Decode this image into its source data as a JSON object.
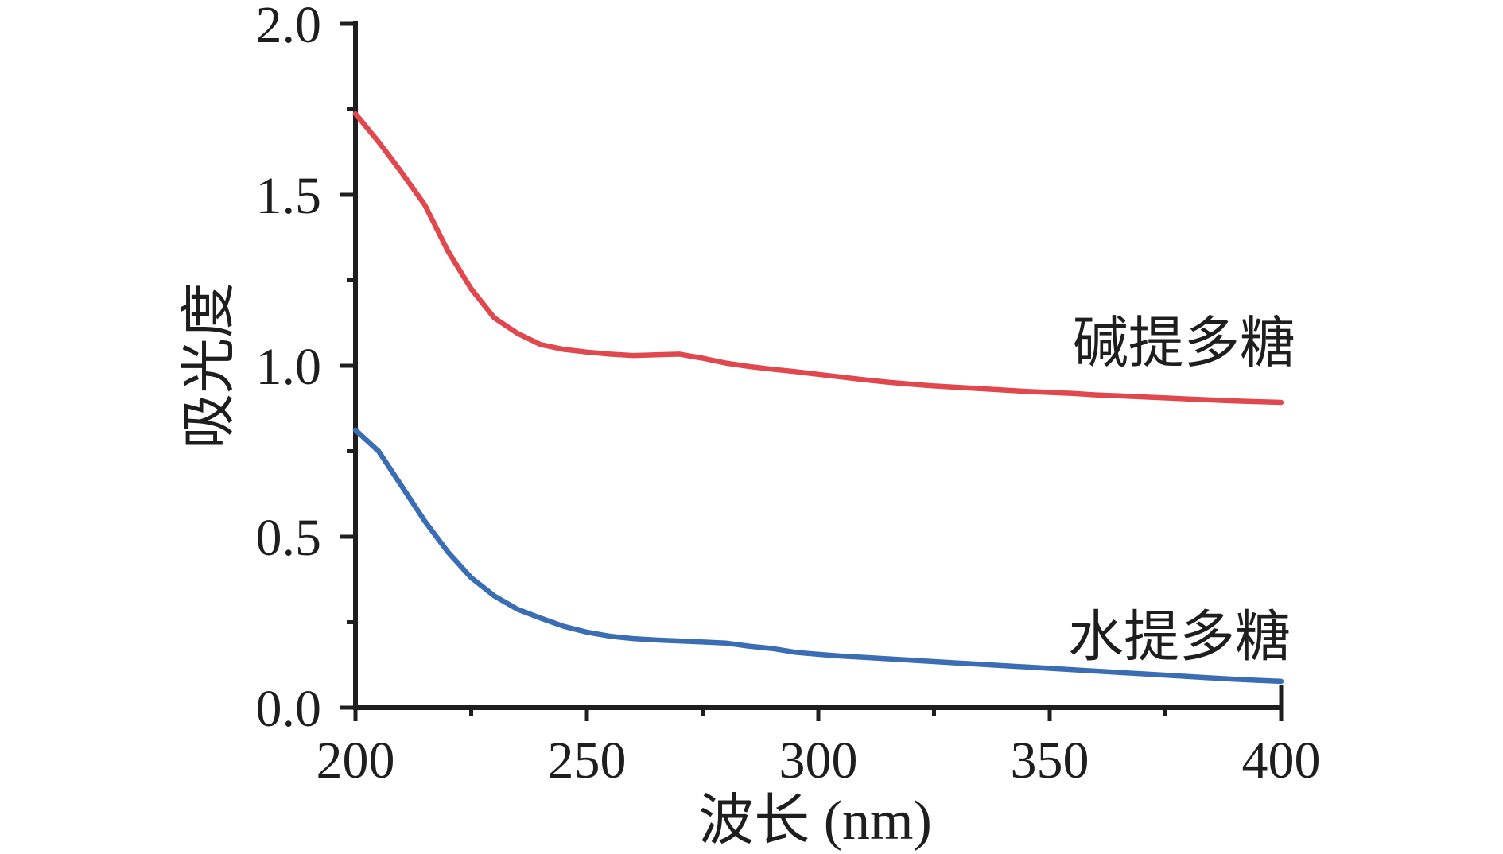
{
  "chart_data": {
    "type": "line",
    "title": "",
    "xlabel": "波长 (nm)",
    "ylabel": "吸光度",
    "xlim": [
      200,
      400
    ],
    "ylim": [
      0.0,
      2.0
    ],
    "grid": false,
    "legend_position": "inline-labels-right",
    "background": "#ffffff",
    "axis_color": "#1e1e1e",
    "text_color": "#1e1e1e",
    "x_major_ticks": [
      200,
      250,
      300,
      350,
      400
    ],
    "x_major_tick_labels": [
      "200",
      "250",
      "300",
      "350",
      "400"
    ],
    "x_minor_ticks": [
      225,
      275,
      325,
      375
    ],
    "y_major_ticks": [
      0.0,
      0.5,
      1.0,
      1.5,
      2.0
    ],
    "y_major_tick_labels": [
      "0.0",
      "0.5",
      "1.0",
      "1.5",
      "2.0"
    ],
    "y_minor_ticks": [
      0.25,
      0.75,
      1.25,
      1.75
    ],
    "x": [
      200,
      205,
      210,
      215,
      220,
      225,
      230,
      235,
      240,
      245,
      250,
      255,
      260,
      265,
      270,
      275,
      280,
      285,
      290,
      295,
      300,
      305,
      310,
      315,
      320,
      325,
      330,
      335,
      340,
      345,
      350,
      355,
      360,
      365,
      370,
      375,
      380,
      385,
      390,
      395,
      400
    ],
    "series": [
      {
        "name": "碱提多糖",
        "color": "#e0484e",
        "label_pos": {
          "x": 379,
          "y": 1.07
        },
        "values": [
          1.737,
          1.655,
          1.565,
          1.47,
          1.335,
          1.225,
          1.14,
          1.095,
          1.062,
          1.048,
          1.04,
          1.034,
          1.03,
          1.032,
          1.034,
          1.022,
          1.008,
          0.998,
          0.99,
          0.983,
          0.975,
          0.967,
          0.959,
          0.952,
          0.946,
          0.941,
          0.937,
          0.933,
          0.929,
          0.925,
          0.922,
          0.919,
          0.915,
          0.912,
          0.909,
          0.906,
          0.903,
          0.9,
          0.897,
          0.895,
          0.893
        ]
      },
      {
        "name": "水提多糖",
        "color": "#3b6db5",
        "label_pos": {
          "x": 378,
          "y": 0.21
        },
        "values": [
          0.812,
          0.75,
          0.648,
          0.545,
          0.455,
          0.38,
          0.327,
          0.288,
          0.262,
          0.238,
          0.221,
          0.209,
          0.202,
          0.198,
          0.195,
          0.192,
          0.189,
          0.18,
          0.173,
          0.162,
          0.156,
          0.151,
          0.147,
          0.143,
          0.139,
          0.135,
          0.131,
          0.127,
          0.123,
          0.119,
          0.115,
          0.111,
          0.107,
          0.103,
          0.099,
          0.095,
          0.091,
          0.087,
          0.083,
          0.08,
          0.077
        ]
      }
    ]
  }
}
